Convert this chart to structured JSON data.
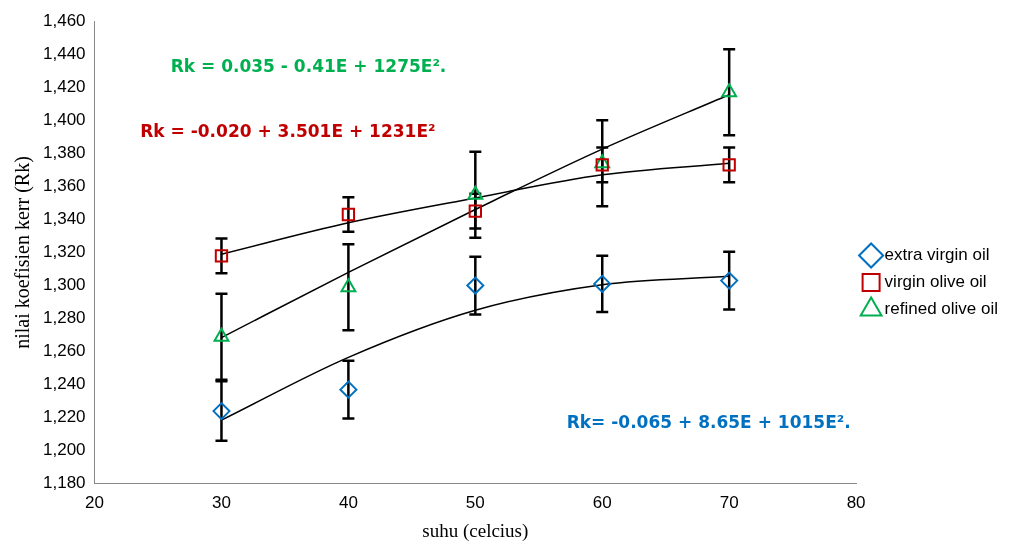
{
  "chart_data": {
    "type": "scatter",
    "xlabel": "suhu (celcius)",
    "ylabel": "nilai koefisien kerr (Rk)",
    "xlim": [
      20,
      80
    ],
    "xticks": [
      20,
      30,
      40,
      50,
      60,
      70,
      80
    ],
    "ylim": [
      1180,
      1460
    ],
    "yticks": [
      {
        "value": 1180,
        "label": "1,180"
      },
      {
        "value": 1200,
        "label": "1,200"
      },
      {
        "value": 1220,
        "label": "1,220"
      },
      {
        "value": 1240,
        "label": "1,240"
      },
      {
        "value": 1260,
        "label": "1,260"
      },
      {
        "value": 1280,
        "label": "1,280"
      },
      {
        "value": 1300,
        "label": "1,300"
      },
      {
        "value": 1320,
        "label": "1,320"
      },
      {
        "value": 1340,
        "label": "1,340"
      },
      {
        "value": 1360,
        "label": "1,360"
      },
      {
        "value": 1380,
        "label": "1,380"
      },
      {
        "value": 1400,
        "label": "1,400"
      },
      {
        "value": 1420,
        "label": "1,420"
      },
      {
        "value": 1440,
        "label": "1,440"
      },
      {
        "value": 1460,
        "label": "1,460"
      }
    ],
    "grid": false,
    "legend": "right",
    "series": [
      {
        "name": "extra virgin oil",
        "marker": "diamond",
        "color": "#0070c0",
        "x": [
          30,
          40,
          50,
          60,
          70
        ],
        "values": [
          1224,
          1237,
          1300,
          1301,
          1303
        ],
        "errors": [
          18,
          17.5,
          17.5,
          17,
          17.5
        ]
      },
      {
        "name": "virgin olive oil",
        "marker": "square",
        "color": "#c00000",
        "x": [
          30,
          40,
          50,
          60,
          70
        ],
        "values": [
          1318,
          1343,
          1345,
          1373,
          1373
        ],
        "errors": [
          10.5,
          10.5,
          10.5,
          10.5,
          10.5
        ]
      },
      {
        "name": "refined olive oil",
        "marker": "triangle",
        "color": "#00b050",
        "x": [
          30,
          40,
          50,
          60,
          70
        ],
        "values": [
          1269,
          1299,
          1355,
          1374,
          1417
        ],
        "errors": [
          26,
          26,
          26,
          26,
          26
        ]
      },
      {
        "type": "line",
        "marker": "none",
        "color": "#000000",
        "x": [
          30,
          40,
          50,
          60,
          70
        ],
        "values": [
          1218.5,
          1256.5,
          1285,
          1300.5,
          1305.6
        ]
      },
      {
        "type": "line",
        "marker": "none",
        "color": "#000000",
        "x": [
          30,
          40,
          50,
          60,
          70
        ],
        "values": [
          1319,
          1338,
          1353,
          1367,
          1374
        ]
      },
      {
        "type": "line",
        "marker": "none",
        "color": "#000000",
        "x": [
          30,
          40,
          50,
          60,
          70
        ],
        "values": [
          1268.5,
          1308,
          1346,
          1382.6,
          1415.5
        ]
      }
    ],
    "annotations": [
      "Rk= -0.065 + 8.65E + 1015E².",
      "Rk = -0.020 + 3.501E + 1231E²",
      "Rk = 0.035 - 0.41E + 1275E²."
    ]
  }
}
